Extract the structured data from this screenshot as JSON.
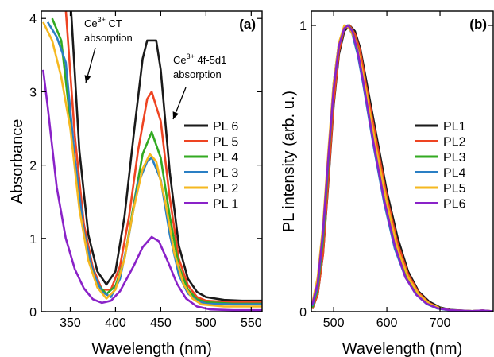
{
  "chart_data": [
    {
      "type": "line",
      "panel_label": "(a)",
      "xlabel": "Wavelength (nm)",
      "ylabel": "Absorbance",
      "xlim": [
        318,
        562
      ],
      "ylim": [
        0,
        4.1
      ],
      "xticks": [
        350,
        400,
        450,
        500,
        550
      ],
      "xtick_labels": [
        "350",
        "400",
        "450",
        "500",
        "550"
      ],
      "yticks": [
        0,
        1,
        2,
        3,
        4
      ],
      "ytick_labels": [
        "0",
        "1",
        "2",
        "3",
        "4"
      ],
      "grid": false,
      "legend_position": "right",
      "annotations": [
        {
          "base": "Ce",
          "sup": "3+",
          "rest": " CT",
          "line2": "absorption"
        },
        {
          "base": "Ce",
          "sup": "3+",
          "rest": " 4f-5d1",
          "line2": "absorption"
        }
      ],
      "series": [
        {
          "name": "PL 6",
          "color": "#1a1a1a",
          "points": [
            [
              350,
              4.3
            ],
            [
              360,
              2.2
            ],
            [
              370,
              1.05
            ],
            [
              380,
              0.55
            ],
            [
              390,
              0.37
            ],
            [
              400,
              0.55
            ],
            [
              410,
              1.3
            ],
            [
              420,
              2.4
            ],
            [
              430,
              3.45
            ],
            [
              435,
              3.7
            ],
            [
              445,
              3.7
            ],
            [
              450,
              3.3
            ],
            [
              460,
              1.9
            ],
            [
              470,
              0.9
            ],
            [
              480,
              0.45
            ],
            [
              490,
              0.27
            ],
            [
              500,
              0.2
            ],
            [
              520,
              0.16
            ],
            [
              540,
              0.15
            ],
            [
              562,
              0.15
            ]
          ]
        },
        {
          "name": "PL 5",
          "color": "#ee4422",
          "points": [
            [
              344,
              4.3
            ],
            [
              355,
              2.4
            ],
            [
              365,
              1.2
            ],
            [
              375,
              0.6
            ],
            [
              385,
              0.3
            ],
            [
              395,
              0.3
            ],
            [
              405,
              0.62
            ],
            [
              415,
              1.3
            ],
            [
              425,
              2.2
            ],
            [
              435,
              2.9
            ],
            [
              440,
              3.0
            ],
            [
              450,
              2.6
            ],
            [
              460,
              1.55
            ],
            [
              470,
              0.72
            ],
            [
              480,
              0.36
            ],
            [
              490,
              0.2
            ],
            [
              500,
              0.15
            ],
            [
              530,
              0.13
            ],
            [
              562,
              0.13
            ]
          ]
        },
        {
          "name": "PL 4",
          "color": "#33aa22",
          "points": [
            [
              330,
              4.0
            ],
            [
              340,
              3.7
            ],
            [
              350,
              2.6
            ],
            [
              360,
              1.45
            ],
            [
              370,
              0.75
            ],
            [
              380,
              0.38
            ],
            [
              390,
              0.24
            ],
            [
              400,
              0.35
            ],
            [
              410,
              0.72
            ],
            [
              420,
              1.45
            ],
            [
              430,
              2.15
            ],
            [
              440,
              2.45
            ],
            [
              450,
              2.1
            ],
            [
              460,
              1.3
            ],
            [
              470,
              0.62
            ],
            [
              480,
              0.3
            ],
            [
              490,
              0.17
            ],
            [
              500,
              0.13
            ],
            [
              530,
              0.11
            ],
            [
              562,
              0.11
            ]
          ]
        },
        {
          "name": "PL 3",
          "color": "#2a7fc4",
          "points": [
            [
              325,
              3.95
            ],
            [
              335,
              3.75
            ],
            [
              345,
              3.4
            ],
            [
              355,
              2.1
            ],
            [
              365,
              1.1
            ],
            [
              375,
              0.55
            ],
            [
              385,
              0.27
            ],
            [
              395,
              0.2
            ],
            [
              405,
              0.45
            ],
            [
              415,
              1.05
            ],
            [
              425,
              1.75
            ],
            [
              435,
              2.05
            ],
            [
              440,
              2.1
            ],
            [
              450,
              1.8
            ],
            [
              460,
              1.05
            ],
            [
              470,
              0.5
            ],
            [
              480,
              0.25
            ],
            [
              490,
              0.15
            ],
            [
              500,
              0.11
            ],
            [
              530,
              0.1
            ],
            [
              562,
              0.1
            ]
          ]
        },
        {
          "name": "PL 2",
          "color": "#f5b820",
          "points": [
            [
              320,
              3.95
            ],
            [
              330,
              3.7
            ],
            [
              340,
              3.2
            ],
            [
              350,
              2.5
            ],
            [
              360,
              1.4
            ],
            [
              370,
              0.7
            ],
            [
              380,
              0.33
            ],
            [
              390,
              0.18
            ],
            [
              400,
              0.3
            ],
            [
              410,
              0.72
            ],
            [
              420,
              1.4
            ],
            [
              430,
              1.95
            ],
            [
              438,
              2.15
            ],
            [
              445,
              2.05
            ],
            [
              455,
              1.5
            ],
            [
              465,
              0.8
            ],
            [
              475,
              0.38
            ],
            [
              485,
              0.18
            ],
            [
              495,
              0.1
            ],
            [
              520,
              0.07
            ],
            [
              562,
              0.07
            ]
          ]
        },
        {
          "name": "PL 1",
          "color": "#8a22c8",
          "points": [
            [
              320,
              3.3
            ],
            [
              325,
              2.8
            ],
            [
              335,
              1.7
            ],
            [
              345,
              1.0
            ],
            [
              355,
              0.58
            ],
            [
              365,
              0.32
            ],
            [
              375,
              0.17
            ],
            [
              385,
              0.12
            ],
            [
              395,
              0.15
            ],
            [
              405,
              0.28
            ],
            [
              420,
              0.62
            ],
            [
              430,
              0.88
            ],
            [
              440,
              1.02
            ],
            [
              448,
              0.96
            ],
            [
              458,
              0.68
            ],
            [
              468,
              0.38
            ],
            [
              478,
              0.18
            ],
            [
              490,
              0.07
            ],
            [
              505,
              0.03
            ],
            [
              530,
              0.02
            ],
            [
              562,
              0.02
            ]
          ]
        }
      ]
    },
    {
      "type": "line",
      "panel_label": "(b)",
      "xlabel": "Wavelength (nm)",
      "ylabel": "PL intensity (arb. u.)",
      "xlim": [
        458,
        800
      ],
      "ylim": [
        0,
        1.05
      ],
      "xticks": [
        500,
        600,
        700
      ],
      "xtick_labels": [
        "500",
        "600",
        "700"
      ],
      "yticks": [
        0,
        1
      ],
      "ytick_labels": [
        "0",
        "1"
      ],
      "grid": false,
      "legend_position": "right",
      "series": [
        {
          "name": "PL1",
          "color": "#1a1a1a",
          "points": [
            [
              460,
              0.01
            ],
            [
              470,
              0.06
            ],
            [
              480,
              0.2
            ],
            [
              490,
              0.45
            ],
            [
              500,
              0.72
            ],
            [
              510,
              0.9
            ],
            [
              520,
              0.98
            ],
            [
              530,
              1.0
            ],
            [
              540,
              0.98
            ],
            [
              550,
              0.92
            ],
            [
              560,
              0.82
            ],
            [
              580,
              0.62
            ],
            [
              600,
              0.42
            ],
            [
              620,
              0.26
            ],
            [
              640,
              0.14
            ],
            [
              660,
              0.07
            ],
            [
              680,
              0.035
            ],
            [
              700,
              0.015
            ],
            [
              720,
              0.006
            ],
            [
              760,
              0.002
            ],
            [
              780,
              0.004
            ],
            [
              800,
              0.001
            ]
          ]
        },
        {
          "name": "PL2",
          "color": "#ee4422",
          "points": [
            [
              460,
              0.01
            ],
            [
              470,
              0.06
            ],
            [
              480,
              0.2
            ],
            [
              490,
              0.46
            ],
            [
              500,
              0.73
            ],
            [
              510,
              0.91
            ],
            [
              520,
              0.99
            ],
            [
              530,
              1.0
            ],
            [
              540,
              0.97
            ],
            [
              550,
              0.91
            ],
            [
              560,
              0.8
            ],
            [
              580,
              0.6
            ],
            [
              600,
              0.4
            ],
            [
              620,
              0.24
            ],
            [
              640,
              0.13
            ],
            [
              660,
              0.065
            ],
            [
              680,
              0.03
            ],
            [
              700,
              0.012
            ],
            [
              720,
              0.005
            ],
            [
              760,
              0.002
            ],
            [
              780,
              0.004
            ],
            [
              800,
              0.001
            ]
          ]
        },
        {
          "name": "PL3",
          "color": "#33aa22",
          "points": [
            [
              460,
              0.015
            ],
            [
              470,
              0.08
            ],
            [
              480,
              0.25
            ],
            [
              490,
              0.52
            ],
            [
              500,
              0.78
            ],
            [
              510,
              0.93
            ],
            [
              520,
              0.99
            ],
            [
              528,
              1.0
            ],
            [
              535,
              0.98
            ],
            [
              545,
              0.92
            ],
            [
              555,
              0.82
            ],
            [
              575,
              0.6
            ],
            [
              595,
              0.4
            ],
            [
              615,
              0.24
            ],
            [
              635,
              0.13
            ],
            [
              655,
              0.065
            ],
            [
              675,
              0.03
            ],
            [
              695,
              0.012
            ],
            [
              720,
              0.004
            ],
            [
              760,
              0.002
            ],
            [
              780,
              0.003
            ],
            [
              800,
              0.001
            ]
          ]
        },
        {
          "name": "PL4",
          "color": "#2a7fc4",
          "points": [
            [
              460,
              0.02
            ],
            [
              470,
              0.09
            ],
            [
              480,
              0.27
            ],
            [
              490,
              0.54
            ],
            [
              500,
              0.8
            ],
            [
              510,
              0.94
            ],
            [
              520,
              0.99
            ],
            [
              526,
              1.0
            ],
            [
              535,
              0.97
            ],
            [
              545,
              0.9
            ],
            [
              555,
              0.8
            ],
            [
              575,
              0.58
            ],
            [
              595,
              0.38
            ],
            [
              615,
              0.22
            ],
            [
              635,
              0.12
            ],
            [
              655,
              0.06
            ],
            [
              675,
              0.027
            ],
            [
              695,
              0.011
            ],
            [
              720,
              0.004
            ],
            [
              760,
              0.002
            ],
            [
              780,
              0.003
            ],
            [
              800,
              0.001
            ]
          ]
        },
        {
          "name": "PL5",
          "color": "#f5b820",
          "points": [
            [
              460,
              0.03
            ],
            [
              470,
              0.12
            ],
            [
              480,
              0.3
            ],
            [
              490,
              0.56
            ],
            [
              500,
              0.8
            ],
            [
              510,
              0.94
            ],
            [
              520,
              1.0
            ],
            [
              530,
              0.99
            ],
            [
              540,
              0.95
            ],
            [
              550,
              0.88
            ],
            [
              560,
              0.78
            ],
            [
              580,
              0.57
            ],
            [
              600,
              0.38
            ],
            [
              620,
              0.22
            ],
            [
              640,
              0.12
            ],
            [
              660,
              0.06
            ],
            [
              680,
              0.028
            ],
            [
              700,
              0.012
            ],
            [
              720,
              0.005
            ],
            [
              760,
              0.002
            ],
            [
              780,
              0.003
            ],
            [
              800,
              0.001
            ]
          ]
        },
        {
          "name": "PL6",
          "color": "#8a22c8",
          "points": [
            [
              460,
              0.025
            ],
            [
              470,
              0.1
            ],
            [
              480,
              0.28
            ],
            [
              490,
              0.54
            ],
            [
              500,
              0.78
            ],
            [
              510,
              0.93
            ],
            [
              520,
              0.99
            ],
            [
              527,
              1.0
            ],
            [
              535,
              0.98
            ],
            [
              545,
              0.91
            ],
            [
              555,
              0.81
            ],
            [
              575,
              0.59
            ],
            [
              595,
              0.39
            ],
            [
              615,
              0.23
            ],
            [
              635,
              0.12
            ],
            [
              655,
              0.06
            ],
            [
              675,
              0.028
            ],
            [
              695,
              0.012
            ],
            [
              720,
              0.005
            ],
            [
              760,
              0.002
            ],
            [
              780,
              0.004
            ],
            [
              800,
              0.001
            ]
          ]
        }
      ]
    }
  ]
}
